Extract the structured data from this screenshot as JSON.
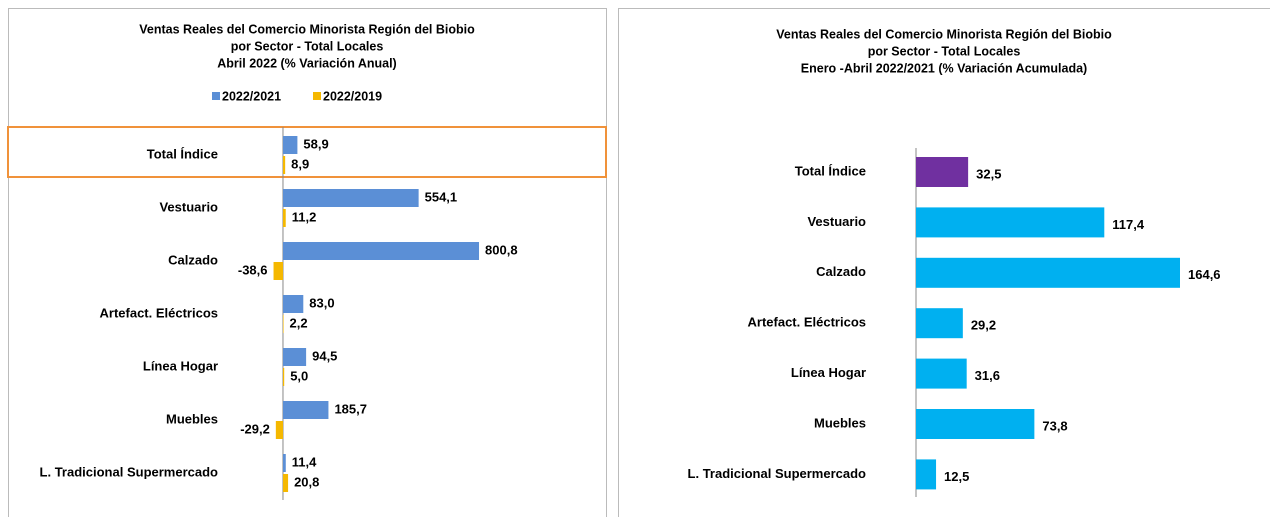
{
  "chart_data": [
    {
      "type": "grouped-hbar",
      "title": [
        "Ventas Reales del Comercio Minorista  Región del Biobio",
        "por Sector - Total Locales",
        "Abril 2022  (% Variación Anual)"
      ],
      "categories": [
        "Total Índice",
        "Vestuario",
        "Calzado",
        "Artefact. Eléctricos",
        "Línea Hogar",
        "Muebles",
        "L. Tradicional Supermercado"
      ],
      "series": [
        {
          "name": "2022/2021",
          "color": "#5b8fd6",
          "values": [
            58.9,
            554.1,
            800.8,
            83.0,
            94.5,
            185.7,
            11.4
          ],
          "value_labels": [
            "58,9",
            "554,1",
            "800,8",
            "83,0",
            "94,5",
            "185,7",
            "11,4"
          ]
        },
        {
          "name": "2022/2019",
          "color": "#f5b800",
          "values": [
            8.9,
            11.2,
            -38.6,
            2.2,
            5.0,
            -29.2,
            20.8
          ],
          "value_labels": [
            "8,9",
            "11,2",
            "-38,6",
            "2,2",
            "5,0",
            "-29,2",
            "20,8"
          ]
        }
      ],
      "xlim": [
        -100,
        900
      ]
    },
    {
      "type": "hbar",
      "title": [
        "Ventas Reales del Comercio Minorista Región del Biobio",
        "por Sector - Total Locales",
        "Enero -Abril 2022/2021  (% Variación Acumulada)"
      ],
      "categories": [
        "Total Índice",
        "Vestuario",
        "Calzado",
        "Artefact. Eléctricos",
        "Línea Hogar",
        "Muebles",
        "L. Tradicional Supermercado"
      ],
      "values": [
        32.5,
        117.4,
        164.6,
        29.2,
        31.6,
        73.8,
        12.5
      ],
      "value_labels": [
        "32,5",
        "117,4",
        "164,6",
        "29,2",
        "31,6",
        "73,8",
        "12,5"
      ],
      "colors": [
        "#7030a0",
        "#00b0f0",
        "#00b0f0",
        "#00b0f0",
        "#00b0f0",
        "#00b0f0",
        "#00b0f0"
      ],
      "xlim": [
        0,
        180
      ]
    }
  ]
}
